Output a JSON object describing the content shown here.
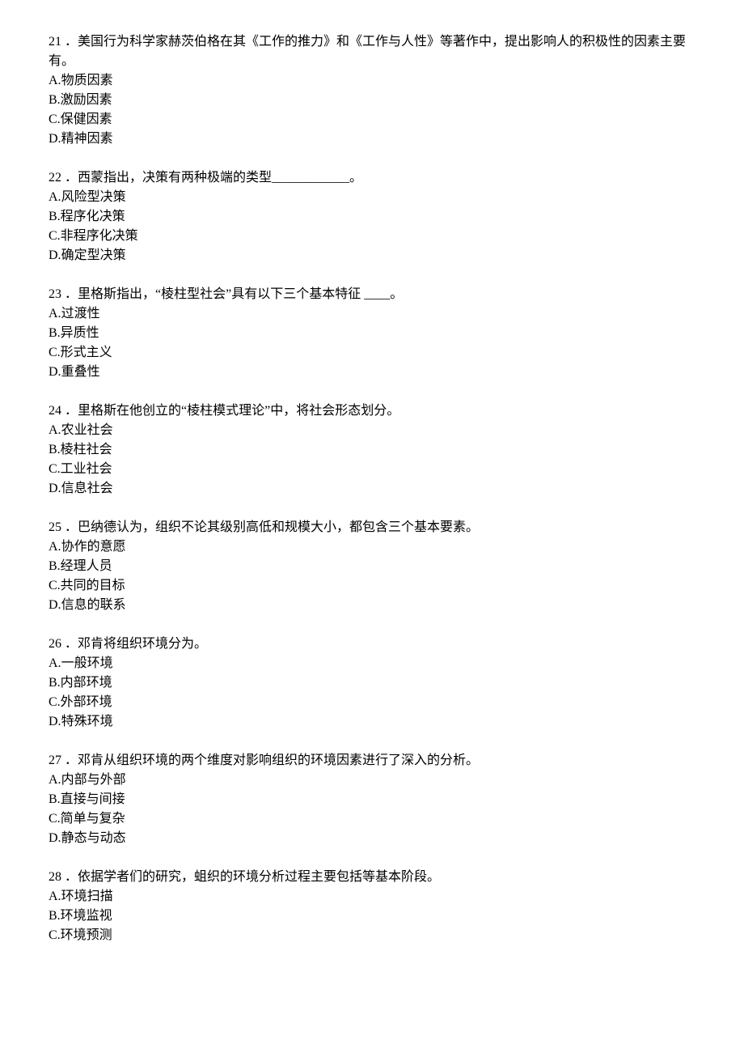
{
  "questions": [
    {
      "number": "21",
      "text": "．美国行为科学家赫茨伯格在其《工作的推力》和《工作与人性》等著作中，提出影响人的积极性的因素主要有。",
      "options": [
        {
          "label": "A.",
          "text": "物质因素"
        },
        {
          "label": "B.",
          "text": "激励因素"
        },
        {
          "label": "C.",
          "text": "保健因素"
        },
        {
          "label": "D.",
          "text": "精神因素"
        }
      ]
    },
    {
      "number": "22",
      "text": "．西蒙指出，决策有两种极端的类型____________。",
      "options": [
        {
          "label": "A.",
          "text": "风险型决策"
        },
        {
          "label": "B.",
          "text": "程序化决策"
        },
        {
          "label": "C.",
          "text": "非程序化决策"
        },
        {
          "label": "D.",
          "text": "确定型决策"
        }
      ]
    },
    {
      "number": "23",
      "text": "．里格斯指出，“棱柱型社会”具有以下三个基本特征 ____。",
      "options": [
        {
          "label": "A.",
          "text": "过渡性"
        },
        {
          "label": "B.",
          "text": "异质性"
        },
        {
          "label": "C.",
          "text": "形式主义"
        },
        {
          "label": "D.",
          "text": "重叠性"
        }
      ]
    },
    {
      "number": "24",
      "text": "．里格斯在他创立的“棱柱模式理论”中，将社会形态划分。",
      "options": [
        {
          "label": "A.",
          "text": "农业社会"
        },
        {
          "label": "B.",
          "text": "棱柱社会"
        },
        {
          "label": "C.",
          "text": "工业社会"
        },
        {
          "label": "D.",
          "text": "信息社会"
        }
      ]
    },
    {
      "number": "25",
      "text": "．巴纳德认为，组织不论其级别高低和规模大小，都包含三个基本要素。",
      "options": [
        {
          "label": "A.",
          "text": "协作的意愿"
        },
        {
          "label": "B.",
          "text": "经理人员"
        },
        {
          "label": "C.",
          "text": "共同的目标"
        },
        {
          "label": "D.",
          "text": "信息的联系"
        }
      ]
    },
    {
      "number": "26",
      "text": "．邓肯将组织环境分为。",
      "options": [
        {
          "label": "A.",
          "text": "一般环境"
        },
        {
          "label": "B.",
          "text": "内部环境"
        },
        {
          "label": "C.",
          "text": "外部环境"
        },
        {
          "label": "D.",
          "text": "特殊环境"
        }
      ]
    },
    {
      "number": "27",
      "text": "．邓肯从组织环境的两个维度对影响组织的环境因素进行了深入的分析。",
      "options": [
        {
          "label": "A.",
          "text": "内部与外部"
        },
        {
          "label": "B.",
          "text": "直接与间接"
        },
        {
          "label": "C.",
          "text": "简单与复杂"
        },
        {
          "label": "D.",
          "text": "静态与动态"
        }
      ]
    },
    {
      "number": "28",
      "text": "．依据学者们的研究，蛆织的环境分析过程主要包括等基本阶段。",
      "options": [
        {
          "label": "A.",
          "text": "环境扫描"
        },
        {
          "label": "B.",
          "text": "环境监视"
        },
        {
          "label": "C.",
          "text": "环境预测"
        }
      ]
    }
  ]
}
